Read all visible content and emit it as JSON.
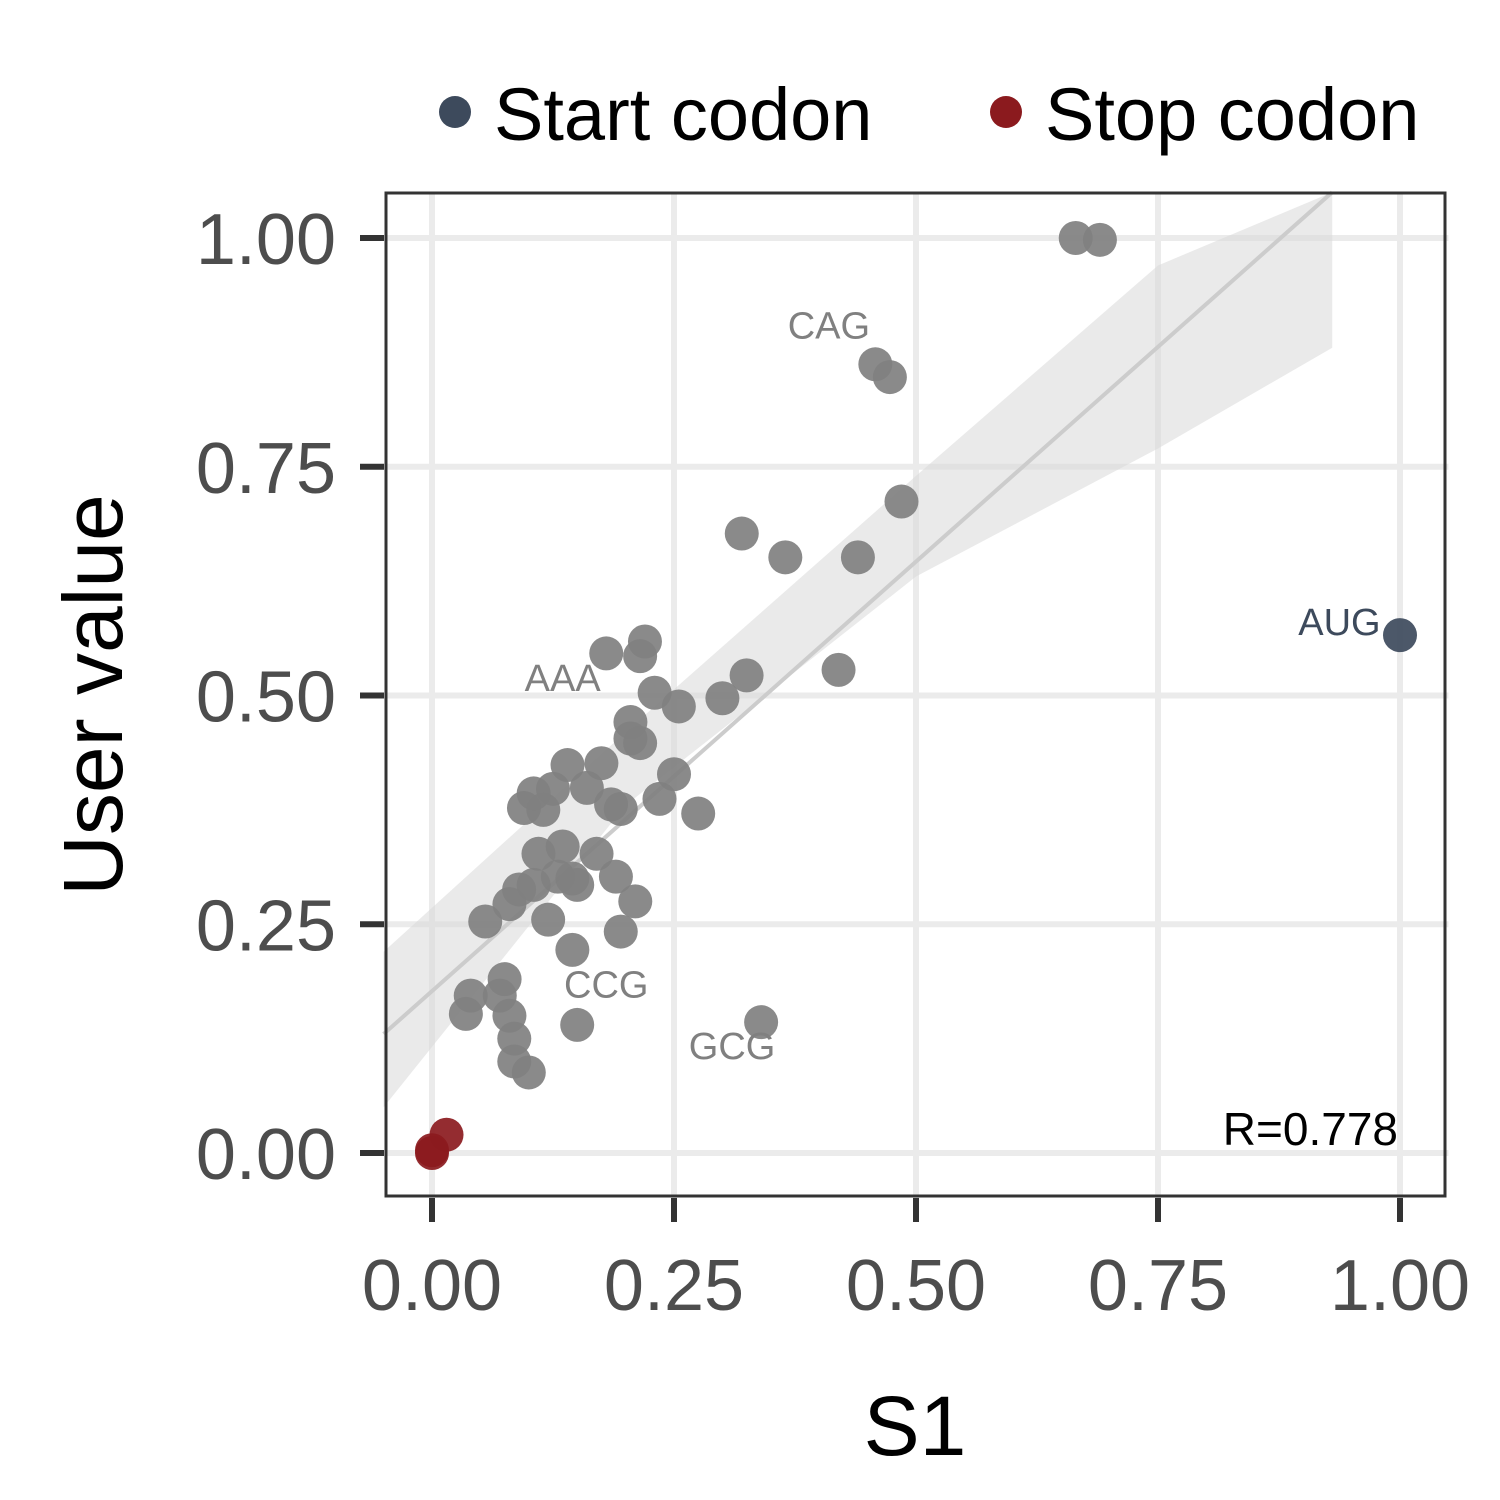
{
  "chart_data": {
    "type": "scatter",
    "xlabel": "S1",
    "ylabel": "User value",
    "xlim": [
      -0.05,
      1.05
    ],
    "ylim": [
      -0.05,
      1.05
    ],
    "xticks": [
      "0.00",
      "0.25",
      "0.50",
      "0.75",
      "1.00"
    ],
    "yticks": [
      "0.00",
      "0.25",
      "0.50",
      "0.75",
      "1.00"
    ],
    "grid": true,
    "legend": {
      "position": "top",
      "entries": [
        {
          "label": "Start codon",
          "color": "#3d4a5c"
        },
        {
          "label": "Stop codon",
          "color": "#8b1a1e"
        }
      ]
    },
    "annotation": "R=0.778",
    "regression": {
      "x_range": [
        -0.05,
        0.93
      ],
      "line": [
        [
          -0.05,
          0.13
        ],
        [
          0.93,
          1.05
        ]
      ],
      "band_upper": [
        [
          -0.05,
          0.22
        ],
        [
          0.2,
          0.46
        ],
        [
          0.5,
          0.74
        ],
        [
          0.75,
          0.97
        ],
        [
          0.93,
          1.05
        ]
      ],
      "band_lower": [
        [
          -0.05,
          0.05
        ],
        [
          0.2,
          0.38
        ],
        [
          0.5,
          0.63
        ],
        [
          0.75,
          0.77
        ],
        [
          0.93,
          0.88
        ]
      ]
    },
    "series": [
      {
        "role": "other",
        "color": "#808080",
        "points": [
          [
            0.665,
            1.0
          ],
          [
            0.69,
            0.998
          ],
          [
            0.458,
            0.862
          ],
          [
            0.473,
            0.848
          ],
          [
            0.485,
            0.712
          ],
          [
            0.32,
            0.677
          ],
          [
            0.365,
            0.651
          ],
          [
            0.44,
            0.651
          ],
          [
            0.22,
            0.559
          ],
          [
            0.18,
            0.546
          ],
          [
            0.215,
            0.543
          ],
          [
            0.325,
            0.522
          ],
          [
            0.42,
            0.528
          ],
          [
            0.23,
            0.503
          ],
          [
            0.255,
            0.488
          ],
          [
            0.3,
            0.497
          ],
          [
            0.205,
            0.471
          ],
          [
            0.205,
            0.453
          ],
          [
            0.215,
            0.448
          ],
          [
            0.14,
            0.424
          ],
          [
            0.175,
            0.426
          ],
          [
            0.25,
            0.414
          ],
          [
            0.105,
            0.393
          ],
          [
            0.125,
            0.398
          ],
          [
            0.16,
            0.399
          ],
          [
            0.095,
            0.377
          ],
          [
            0.115,
            0.375
          ],
          [
            0.185,
            0.381
          ],
          [
            0.195,
            0.376
          ],
          [
            0.235,
            0.387
          ],
          [
            0.275,
            0.371
          ],
          [
            0.11,
            0.327
          ],
          [
            0.135,
            0.335
          ],
          [
            0.17,
            0.327
          ],
          [
            0.13,
            0.302
          ],
          [
            0.145,
            0.3
          ],
          [
            0.19,
            0.302
          ],
          [
            0.09,
            0.288
          ],
          [
            0.105,
            0.293
          ],
          [
            0.15,
            0.293
          ],
          [
            0.08,
            0.272
          ],
          [
            0.21,
            0.275
          ],
          [
            0.055,
            0.253
          ],
          [
            0.12,
            0.255
          ],
          [
            0.195,
            0.242
          ],
          [
            0.145,
            0.222
          ],
          [
            0.075,
            0.19
          ],
          [
            0.04,
            0.172
          ],
          [
            0.07,
            0.172
          ],
          [
            0.035,
            0.152
          ],
          [
            0.08,
            0.15
          ],
          [
            0.15,
            0.14
          ],
          [
            0.34,
            0.143
          ],
          [
            0.085,
            0.125
          ],
          [
            0.085,
            0.1
          ],
          [
            0.1,
            0.088
          ]
        ]
      },
      {
        "role": "start",
        "name": "Start codon",
        "color": "#3d4a5c",
        "points": [
          [
            1.0,
            0.566
          ]
        ]
      },
      {
        "role": "stop",
        "name": "Stop codon",
        "color": "#8b1a1e",
        "points": [
          [
            0.015,
            0.02
          ],
          [
            0.0,
            0.003
          ],
          [
            0.0,
            0.0
          ]
        ]
      }
    ],
    "point_labels": [
      {
        "text": "CAG",
        "x": 0.41,
        "y": 0.89,
        "anchor": "middle",
        "color": "#808080"
      },
      {
        "text": "AAA",
        "x": 0.135,
        "y": 0.505,
        "anchor": "middle",
        "color": "#808080"
      },
      {
        "text": "CCG",
        "x": 0.18,
        "y": 0.17,
        "anchor": "middle",
        "color": "#808080"
      },
      {
        "text": "GCG",
        "x": 0.31,
        "y": 0.103,
        "anchor": "middle",
        "color": "#808080"
      },
      {
        "text": "AUG",
        "x": 0.98,
        "y": 0.566,
        "anchor": "end",
        "color": "#3d4a5c"
      }
    ]
  }
}
